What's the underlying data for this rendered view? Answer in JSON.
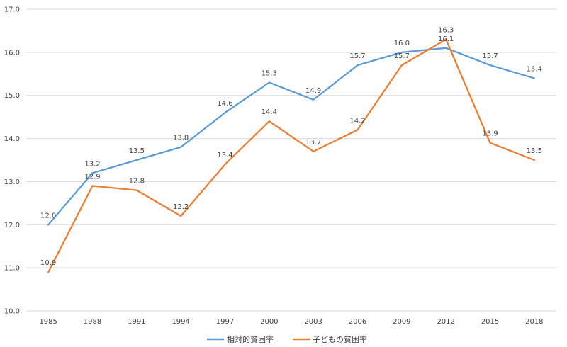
{
  "chart_data": {
    "type": "line",
    "title": "",
    "xlabel": "",
    "ylabel": "",
    "x": [
      "1985",
      "1988",
      "1991",
      "1994",
      "1997",
      "2000",
      "2003",
      "2006",
      "2009",
      "2012",
      "2015",
      "2018"
    ],
    "ylim": [
      10.0,
      17.0
    ],
    "yticks": [
      10.0,
      11.0,
      12.0,
      13.0,
      14.0,
      15.0,
      16.0,
      17.0
    ],
    "grid": true,
    "legend_position": "bottom",
    "series": [
      {
        "name": "相対的貧困率",
        "color": "#5b9bd5",
        "values": [
          12.0,
          13.2,
          13.5,
          13.8,
          14.6,
          15.3,
          14.9,
          15.7,
          16.0,
          16.1,
          15.7,
          15.4
        ]
      },
      {
        "name": "子どもの貧困率",
        "color": "#ed7d31",
        "values": [
          10.9,
          12.9,
          12.8,
          12.2,
          13.4,
          14.4,
          13.7,
          14.2,
          15.7,
          16.3,
          13.9,
          13.5
        ]
      }
    ]
  }
}
